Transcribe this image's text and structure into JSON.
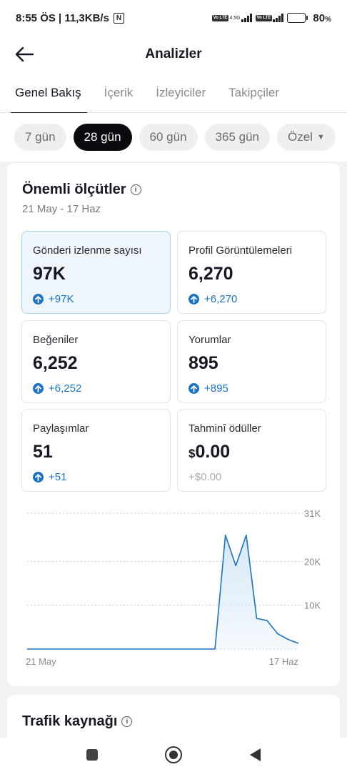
{
  "status_bar": {
    "time_speed": "8:55 ÖS | 11,3KB/s",
    "nfc": "N",
    "net_tag": "4.5G",
    "volte": "Vo LTE",
    "battery_pct": "80",
    "battery_unit": "%",
    "battery_level": 0.8
  },
  "header": {
    "title": "Analizler"
  },
  "tabs": [
    {
      "label": "Genel Bakış",
      "active": true
    },
    {
      "label": "İçerik",
      "active": false
    },
    {
      "label": "İzleyiciler",
      "active": false
    },
    {
      "label": "Takipçiler",
      "active": false
    }
  ],
  "range_chips": [
    {
      "label": "7 gün",
      "active": false
    },
    {
      "label": "28 gün",
      "active": true
    },
    {
      "label": "60 gün",
      "active": false
    },
    {
      "label": "365 gün",
      "active": false
    },
    {
      "label": "Özel",
      "active": false
    }
  ],
  "key_metrics": {
    "title": "Önemli ölçütler",
    "date_range": "21 May - 17 Haz",
    "cards": [
      {
        "label": "Gönderi izlenme sayısı",
        "value": "97K",
        "delta": "+97K"
      },
      {
        "label": "Profil Görüntülemeleri",
        "value": "6,270",
        "delta": "+6,270"
      },
      {
        "label": "Beğeniler",
        "value": "6,252",
        "delta": "+6,252"
      },
      {
        "label": "Yorumlar",
        "value": "895",
        "delta": "+895"
      },
      {
        "label": "Paylaşımlar",
        "value": "51",
        "delta": "+51"
      },
      {
        "label": "Tahminî ödüller",
        "currency": "$",
        "value": "0.00",
        "delta": "+$0.00"
      }
    ]
  },
  "chart_data": {
    "type": "area",
    "y_ticks": [
      "31K",
      "20K",
      "10K"
    ],
    "y_tick_values": [
      31000,
      20000,
      10000
    ],
    "ylim": [
      0,
      31000
    ],
    "x_labels": [
      "21 May",
      "17 Haz"
    ],
    "values": [
      0,
      0,
      0,
      0,
      0,
      0,
      0,
      0,
      0,
      0,
      0,
      0,
      0,
      0,
      0,
      0,
      0,
      0,
      0,
      26000,
      19000,
      26000,
      7000,
      6500,
      3500,
      2200,
      1300
    ],
    "grid": true,
    "line_color": "#1a73c4",
    "fill_color": "#d6e8f7"
  },
  "traffic": {
    "title": "Trafik kaynağı"
  }
}
